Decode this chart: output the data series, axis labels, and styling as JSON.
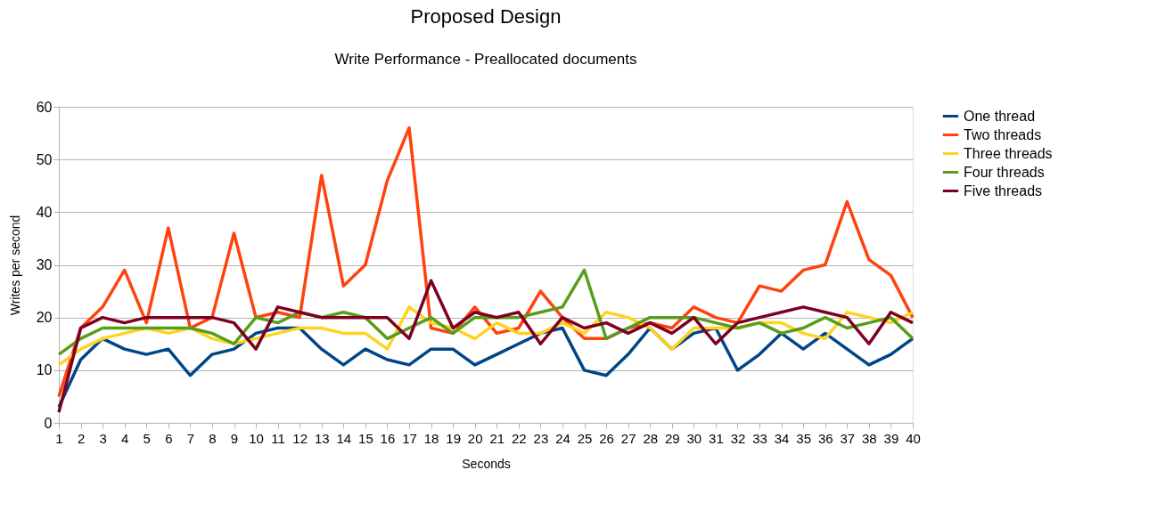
{
  "chart_data": {
    "type": "line",
    "title": "Proposed Design",
    "subtitle": "Write Performance - Preallocated documents",
    "xlabel": "Seconds",
    "ylabel": "Writes per second",
    "x": [
      1,
      2,
      3,
      4,
      5,
      6,
      7,
      8,
      9,
      10,
      11,
      12,
      13,
      14,
      15,
      16,
      17,
      18,
      19,
      20,
      21,
      22,
      23,
      24,
      25,
      26,
      27,
      28,
      29,
      30,
      31,
      32,
      33,
      34,
      35,
      36,
      37,
      38,
      39,
      40
    ],
    "xlim": [
      1,
      40
    ],
    "xticks": [
      1,
      2,
      3,
      4,
      5,
      6,
      7,
      8,
      9,
      10,
      11,
      12,
      13,
      14,
      15,
      16,
      17,
      18,
      19,
      20,
      21,
      22,
      23,
      24,
      25,
      26,
      27,
      28,
      29,
      30,
      31,
      32,
      33,
      34,
      35,
      36,
      37,
      38,
      39,
      40
    ],
    "ylim": [
      0,
      60
    ],
    "yticks": [
      0,
      10,
      20,
      30,
      40,
      50,
      60
    ],
    "grid": "y",
    "legend": "right",
    "marker": "none",
    "line_style": "solid",
    "series": [
      {
        "name": "One thread",
        "color": "#004586",
        "values": [
          3,
          12,
          16,
          14,
          13,
          14,
          9,
          13,
          14,
          17,
          18,
          18,
          14,
          11,
          14,
          12,
          11,
          14,
          14,
          11,
          13,
          15,
          17,
          18,
          10,
          9,
          13,
          18,
          14,
          17,
          18,
          10,
          13,
          17,
          14,
          17,
          14,
          11,
          13,
          16
        ]
      },
      {
        "name": "Two threads",
        "color": "#ff420e",
        "values": [
          5,
          18,
          22,
          29,
          19,
          37,
          18,
          20,
          36,
          20,
          21,
          20,
          47,
          26,
          30,
          46,
          56,
          18,
          17,
          22,
          17,
          18,
          25,
          20,
          16,
          16,
          18,
          19,
          18,
          22,
          20,
          19,
          26,
          25,
          29,
          30,
          42,
          31,
          28,
          20
        ]
      },
      {
        "name": "Three threads",
        "color": "#ffd320",
        "values": [
          11,
          14,
          16,
          17,
          18,
          17,
          18,
          16,
          15,
          16,
          17,
          18,
          18,
          17,
          17,
          14,
          22,
          19,
          18,
          16,
          19,
          17,
          17,
          19,
          17,
          21,
          20,
          18,
          14,
          18,
          18,
          18,
          19,
          19,
          17,
          16,
          21,
          20,
          19,
          21
        ]
      },
      {
        "name": "Four threads",
        "color": "#579d1c",
        "values": [
          13,
          16,
          18,
          18,
          18,
          18,
          18,
          17,
          15,
          20,
          19,
          21,
          20,
          21,
          20,
          16,
          18,
          20,
          17,
          20,
          20,
          20,
          21,
          22,
          29,
          16,
          18,
          20,
          20,
          20,
          19,
          18,
          19,
          17,
          18,
          20,
          18,
          19,
          20,
          16
        ]
      },
      {
        "name": "Five threads",
        "color": "#7e0021",
        "values": [
          2,
          18,
          20,
          19,
          20,
          20,
          20,
          20,
          19,
          14,
          22,
          21,
          20,
          20,
          20,
          20,
          16,
          27,
          18,
          21,
          20,
          21,
          15,
          20,
          18,
          19,
          17,
          19,
          17,
          20,
          15,
          19,
          20,
          21,
          22,
          21,
          20,
          15,
          21,
          19
        ]
      }
    ]
  }
}
